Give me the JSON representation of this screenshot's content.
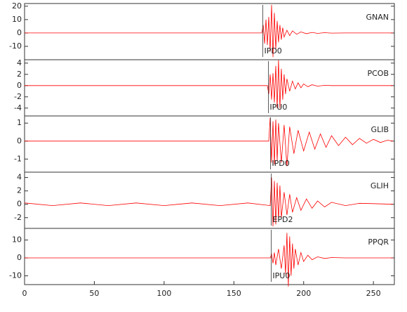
{
  "chart_data": [
    {
      "type": "line",
      "xlim": [
        0,
        265
      ],
      "ylim": [
        -20,
        22
      ],
      "yticks": [
        -10,
        0,
        10,
        20
      ],
      "x": [
        0,
        170,
        171,
        172,
        173,
        174,
        175,
        176,
        177,
        178,
        179,
        180,
        181,
        182,
        183,
        184,
        185,
        186,
        188,
        190,
        192,
        195,
        198,
        202,
        206,
        210,
        215,
        220,
        230,
        240,
        264
      ],
      "series": [
        {
          "name": "GNAN",
          "color": "#ff0000",
          "values": [
            0,
            0,
            6,
            -8,
            10,
            -9,
            12,
            -14,
            21,
            -18,
            15,
            -12,
            9,
            -7,
            6,
            -5,
            4,
            -3,
            2,
            -2,
            1.5,
            -1,
            0.8,
            -0.5,
            0.4,
            -0.3,
            0.2,
            -0.1,
            0,
            0,
            0
          ]
        }
      ],
      "pick": {
        "label": "IPD0",
        "x": 170.7
      }
    },
    {
      "type": "line",
      "xlim": [
        0,
        265
      ],
      "ylim": [
        -5.4,
        4.6
      ],
      "yticks": [
        -4,
        -2,
        0,
        2,
        4
      ],
      "x": [
        0,
        174,
        175,
        176,
        177,
        178,
        179,
        180,
        181,
        182,
        183,
        184,
        185,
        186,
        187,
        188,
        190,
        192,
        194,
        196,
        198,
        200,
        203,
        206,
        210,
        215,
        220,
        230,
        264
      ],
      "series": [
        {
          "name": "PCOB",
          "color": "#ff0000",
          "values": [
            0,
            0,
            -1.5,
            2,
            -2.5,
            2.2,
            -3,
            3.5,
            -4,
            4.5,
            -4,
            3,
            -2.5,
            2,
            -1.5,
            1.2,
            -1,
            0.8,
            -0.6,
            0.5,
            -0.4,
            0.3,
            -0.2,
            0.15,
            -0.1,
            0.05,
            0,
            0,
            0
          ]
        }
      ],
      "pick": {
        "label": "IPU0",
        "x": 174.7
      }
    },
    {
      "type": "line",
      "xlim": [
        0,
        265
      ],
      "ylim": [
        -1.73,
        1.4
      ],
      "yticks": [
        -1,
        0,
        1
      ],
      "x": [
        0,
        175,
        176,
        177,
        178,
        179,
        180,
        181,
        182,
        184,
        186,
        188,
        190,
        193,
        196,
        200,
        204,
        208,
        212,
        216,
        220,
        225,
        230,
        235,
        240,
        245,
        250,
        255,
        260,
        264
      ],
      "series": [
        {
          "name": "GLIB",
          "color": "#ff0000",
          "values": [
            0,
            0,
            1.3,
            -1.2,
            1.1,
            -1.3,
            1.2,
            -1.1,
            1.0,
            -1.2,
            0.9,
            -1.4,
            0.8,
            -0.7,
            0.6,
            -0.55,
            0.5,
            -0.45,
            0.4,
            -0.35,
            0.3,
            -0.25,
            0.22,
            -0.2,
            0.15,
            -0.12,
            0.1,
            -0.08,
            0.05,
            0
          ]
        }
      ],
      "pick": {
        "label": "IPD0",
        "x": 176.2
      }
    },
    {
      "type": "line",
      "xlim": [
        0,
        265
      ],
      "ylim": [
        -3.6,
        4.8
      ],
      "yticks": [
        -2,
        0,
        2,
        4
      ],
      "x": [
        0,
        20,
        40,
        60,
        80,
        100,
        120,
        140,
        160,
        176,
        177,
        178,
        179,
        180,
        181,
        182,
        183,
        184,
        186,
        188,
        190,
        192,
        195,
        198,
        202,
        206,
        210,
        215,
        220,
        230,
        240,
        250,
        264
      ],
      "series": [
        {
          "name": "GLIH",
          "color": "#ff0000",
          "values": [
            0.2,
            -0.2,
            0.2,
            -0.2,
            0.2,
            -0.2,
            0.2,
            -0.2,
            0.2,
            -0.2,
            4,
            -3.3,
            3.5,
            -3,
            3.2,
            -2.5,
            2.8,
            -2,
            1.8,
            -1.6,
            1.5,
            -1.2,
            1,
            -0.9,
            0.8,
            -0.6,
            0.5,
            -0.4,
            0.3,
            -0.2,
            0.15,
            0.1,
            0
          ]
        }
      ],
      "pick": {
        "label": "EPD2",
        "x": 176.7
      }
    },
    {
      "type": "line",
      "xlim": [
        0,
        265
      ],
      "ylim": [
        -14.9,
        16.5
      ],
      "yticks": [
        -10,
        0,
        10
      ],
      "xticks": [
        0,
        50,
        100,
        150,
        200,
        250
      ],
      "x": [
        0,
        176,
        177,
        178,
        179,
        180,
        182,
        184,
        186,
        187,
        188,
        189,
        190,
        191,
        192,
        193,
        194,
        196,
        198,
        200,
        203,
        206,
        210,
        215,
        220,
        230,
        264
      ],
      "series": [
        {
          "name": "PPQR",
          "color": "#ff0000",
          "values": [
            0,
            0,
            2,
            -3,
            3,
            -4,
            5,
            -6,
            7,
            -9,
            14,
            -16,
            12,
            -10,
            8,
            -6,
            5,
            -4,
            3,
            -2,
            1.5,
            -1,
            0.6,
            -0.3,
            0.2,
            0,
            0
          ]
        }
      ],
      "pick": {
        "label": "IPU0",
        "x": 176.7
      }
    }
  ]
}
